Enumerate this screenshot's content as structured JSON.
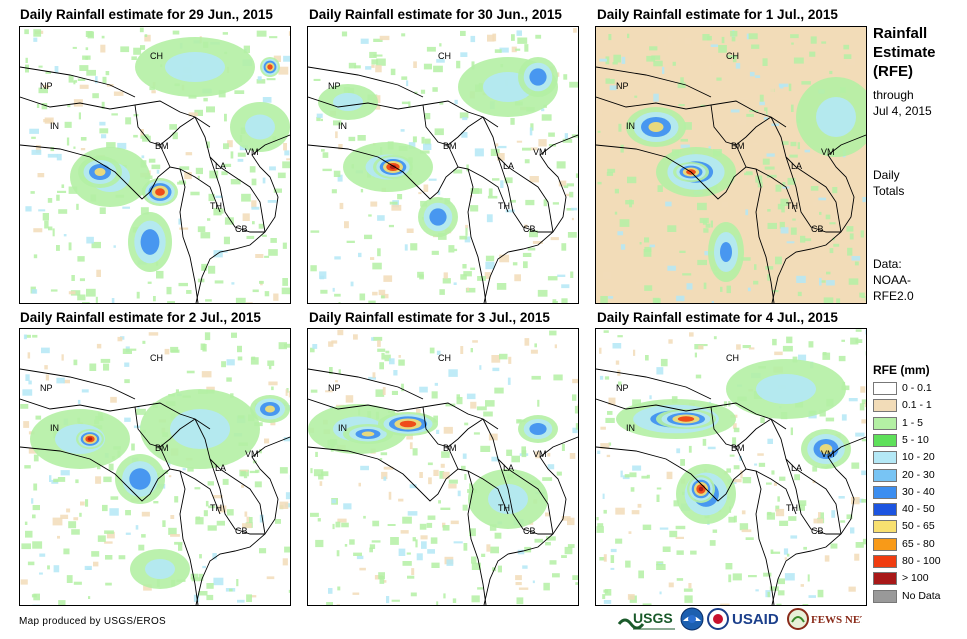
{
  "panels": [
    {
      "title": "Daily Rainfall estimate for 29 Jun., 2015"
    },
    {
      "title": "Daily Rainfall estimate for 30 Jun., 2015"
    },
    {
      "title": "Daily Rainfall estimate for 1 Jul., 2015"
    },
    {
      "title": "Daily Rainfall estimate for 2 Jul., 2015"
    },
    {
      "title": "Daily Rainfall estimate for 3 Jul., 2015"
    },
    {
      "title": "Daily Rainfall estimate for 4 Jul., 2015"
    }
  ],
  "country_labels": {
    "ch": "CH",
    "np": "NP",
    "in": "IN",
    "bm": "BM",
    "la": "LA",
    "vm": "VM",
    "th": "TH",
    "cb": "CB"
  },
  "sidebar": {
    "title_line1": "Rainfall",
    "title_line2": "Estimate",
    "title_line3": "(RFE)",
    "through": "through",
    "date": "Jul 4, 2015",
    "daily": "Daily",
    "totals": "Totals",
    "data_label": "Data:",
    "data_source1": "NOAA-",
    "data_source2": "RFE2.0"
  },
  "legend": {
    "title": "RFE (mm)",
    "items": [
      {
        "label": "0 - 0.1",
        "color": "#ffffff"
      },
      {
        "label": "0.1 - 1",
        "color": "#f2dcb8"
      },
      {
        "label": "1 - 5",
        "color": "#b4f0a4"
      },
      {
        "label": "5 - 10",
        "color": "#5ee05a"
      },
      {
        "label": "10 - 20",
        "color": "#b4e8f6"
      },
      {
        "label": "20 - 30",
        "color": "#78c4f4"
      },
      {
        "label": "30 - 40",
        "color": "#3c8ef0"
      },
      {
        "label": "40 - 50",
        "color": "#1c54e0"
      },
      {
        "label": "50 - 65",
        "color": "#f8e070"
      },
      {
        "label": "65 - 80",
        "color": "#f89a18"
      },
      {
        "label": "80 - 100",
        "color": "#f03c10"
      },
      {
        "label": "> 100",
        "color": "#a81818"
      },
      {
        "label": "No Data",
        "color": "#999999"
      }
    ]
  },
  "footer": {
    "credit": "Map produced by USGS/EROS"
  },
  "logos": {
    "usgs": "USGS",
    "usaid": "USAID",
    "fewsnet": "FEWS NET"
  }
}
